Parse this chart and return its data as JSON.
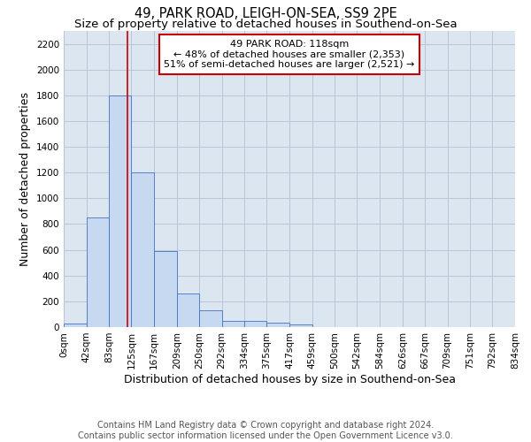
{
  "title": "49, PARK ROAD, LEIGH-ON-SEA, SS9 2PE",
  "subtitle": "Size of property relative to detached houses in Southend-on-Sea",
  "xlabel": "Distribution of detached houses by size in Southend-on-Sea",
  "ylabel": "Number of detached properties",
  "footer_line1": "Contains HM Land Registry data © Crown copyright and database right 2024.",
  "footer_line2": "Contains public sector information licensed under the Open Government Licence v3.0.",
  "annotation_line1": "49 PARK ROAD: 118sqm",
  "annotation_line2": "← 48% of detached houses are smaller (2,353)",
  "annotation_line3": "51% of semi-detached houses are larger (2,521) →",
  "bar_edges": [
    0,
    42,
    83,
    125,
    167,
    209,
    250,
    292,
    334,
    375,
    417,
    459,
    500,
    542,
    584,
    626,
    667,
    709,
    751,
    792,
    834
  ],
  "bar_heights": [
    28,
    848,
    1800,
    1200,
    590,
    260,
    128,
    50,
    48,
    32,
    22,
    0,
    0,
    0,
    0,
    0,
    0,
    0,
    0,
    0
  ],
  "bar_color": "#c6d9f0",
  "bar_edge_color": "#4472c4",
  "grid_color": "#b8c4d8",
  "bg_color": "#dce6f1",
  "vline_color": "#cc0000",
  "vline_x": 118,
  "ylim": [
    0,
    2300
  ],
  "yticks": [
    0,
    200,
    400,
    600,
    800,
    1000,
    1200,
    1400,
    1600,
    1800,
    2000,
    2200
  ],
  "xtick_labels": [
    "0sqm",
    "42sqm",
    "83sqm",
    "125sqm",
    "167sqm",
    "209sqm",
    "250sqm",
    "292sqm",
    "334sqm",
    "375sqm",
    "417sqm",
    "459sqm",
    "500sqm",
    "542sqm",
    "584sqm",
    "626sqm",
    "667sqm",
    "709sqm",
    "751sqm",
    "792sqm",
    "834sqm"
  ],
  "annotation_box_color": "#ffffff",
  "annotation_box_edge": "#cc0000",
  "title_fontsize": 10.5,
  "subtitle_fontsize": 9.5,
  "axis_label_fontsize": 9,
  "tick_fontsize": 7.5,
  "annotation_fontsize": 8,
  "footer_fontsize": 7
}
